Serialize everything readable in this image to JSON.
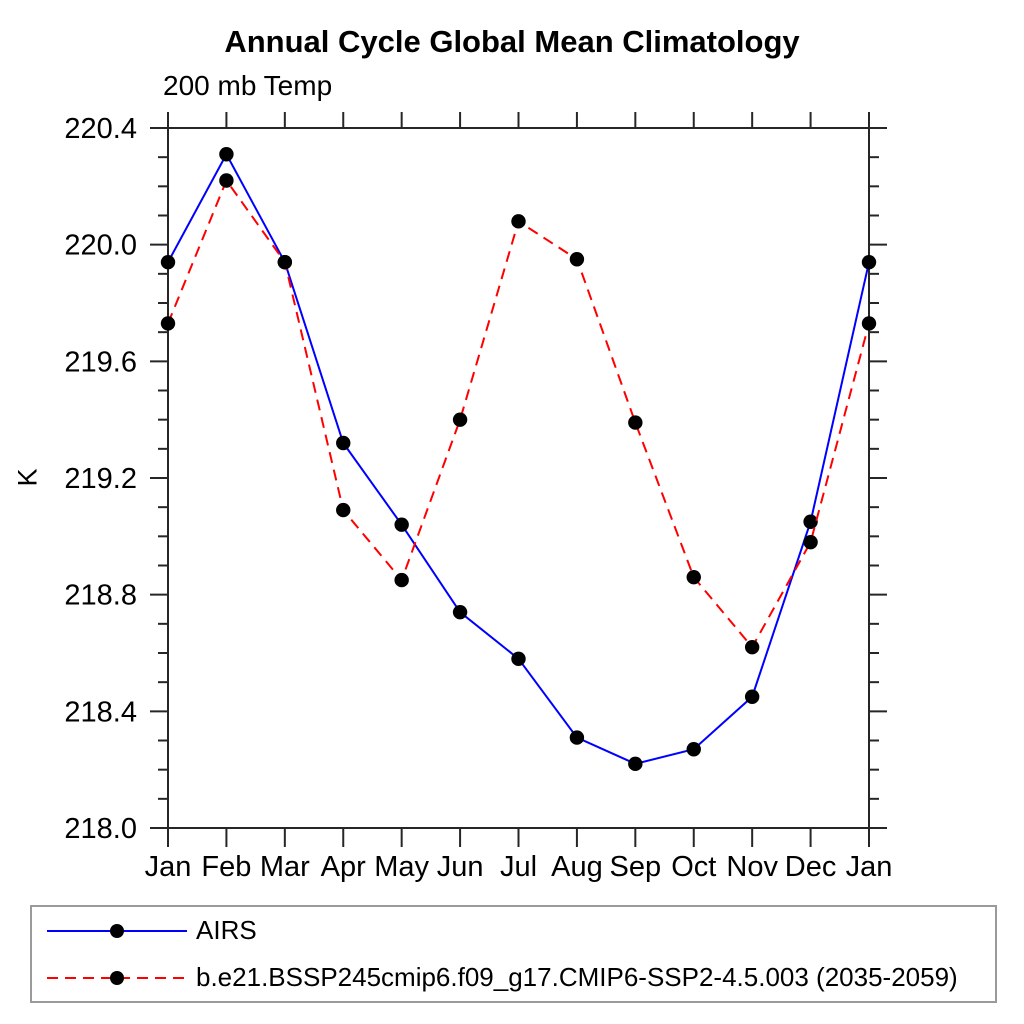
{
  "page": {
    "background": "#ffffff"
  },
  "chart_data": {
    "type": "line",
    "title": "Annual Cycle Global Mean Climatology",
    "subtitle": "200 mb Temp",
    "xlabel": "",
    "ylabel": "K",
    "categories": [
      "Jan",
      "Feb",
      "Mar",
      "Apr",
      "May",
      "Jun",
      "Jul",
      "Aug",
      "Sep",
      "Oct",
      "Nov",
      "Dec",
      "Jan"
    ],
    "series": [
      {
        "name": "AIRS",
        "color": "#0000ff",
        "line_style": "solid",
        "marker": "circle",
        "marker_color": "#000000",
        "values": [
          219.94,
          220.31,
          219.94,
          219.32,
          219.04,
          218.74,
          218.58,
          218.31,
          218.22,
          218.27,
          218.45,
          219.05,
          219.94
        ]
      },
      {
        "name": "b.e21.BSSP245cmip6.f09_g17.CMIP6-SSP2-4.5.003 (2035-2059)",
        "color": "#ff0000",
        "line_style": "dashed",
        "marker": "circle",
        "marker_color": "#000000",
        "values": [
          219.73,
          220.22,
          219.94,
          219.09,
          218.85,
          219.4,
          220.08,
          219.95,
          219.39,
          218.86,
          218.62,
          218.98,
          219.73
        ]
      }
    ],
    "ylim": [
      218.0,
      220.4
    ],
    "yticks": [
      218.0,
      218.4,
      218.8,
      219.2,
      219.6,
      220.0,
      220.4
    ],
    "yminor_step": 0.1,
    "grid": false,
    "legend_position": "bottom-box",
    "axis_color": "#262626"
  }
}
